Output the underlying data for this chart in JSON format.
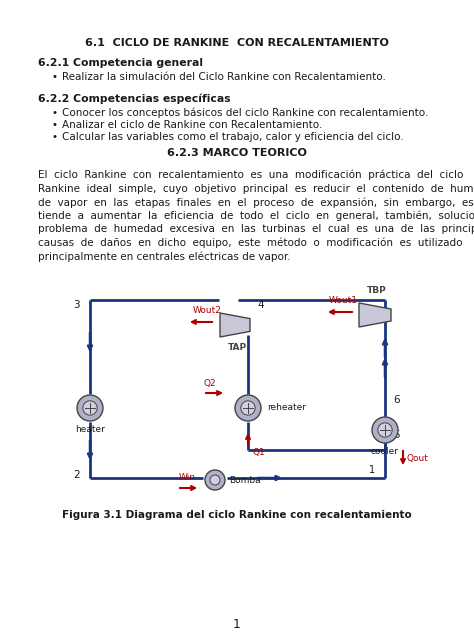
{
  "title": "6.1  CICLO DE RANKINE  CON RECALENTAMIENTO",
  "section1_title": "6.2.1 Competencia general",
  "section1_bullet": "Realizar la simulación del Ciclo Rankine con Recalentamiento.",
  "section2_title": "6.2.2 Competencias específicas",
  "section2_bullets": [
    "Conocer los conceptos básicos del ciclo Rankine con recalentamiento.",
    "Analizar el ciclo de Rankine con Recalentamiento.",
    "Calcular las variables como el trabajo, calor y eficiencia del ciclo."
  ],
  "section3_title": "6.2.3 MARCO TEORICO",
  "para_lines": [
    "El  ciclo  Rankine  con  recalentamiento  es  una  modificación  práctica  del  ciclo",
    "Rankine  ideal  simple,  cuyo  objetivo  principal  es  reducir  el  contenido  de  humedad",
    "de  vapor  en  las  etapas  finales  en  el  proceso  de  expansión,  sin  embargo,  este",
    "tiende  a  aumentar  la  eficiencia  de  todo  el  ciclo  en  general,  también,  soluciona  el",
    "problema  de  humedad  excesiva  en  las  turbinas  el  cual  es  una  de  las  principales",
    "causas  de  daños  en  dicho  equipo,  este  método  o  modificación  es  utilizado",
    "principalmente en centrales eléctricas de vapor."
  ],
  "fig_caption": "Figura 3.1 Diagrama del ciclo Rankine con recalentamiento",
  "page_number": "1",
  "bg_color": "#ffffff",
  "text_color": "#1a1a1a",
  "blue": "#1a3580",
  "darkblue": "#0000aa",
  "red": "#990000",
  "darkred": "#aa0000",
  "gray_comp": "#888899",
  "comp_edge": "#444444"
}
